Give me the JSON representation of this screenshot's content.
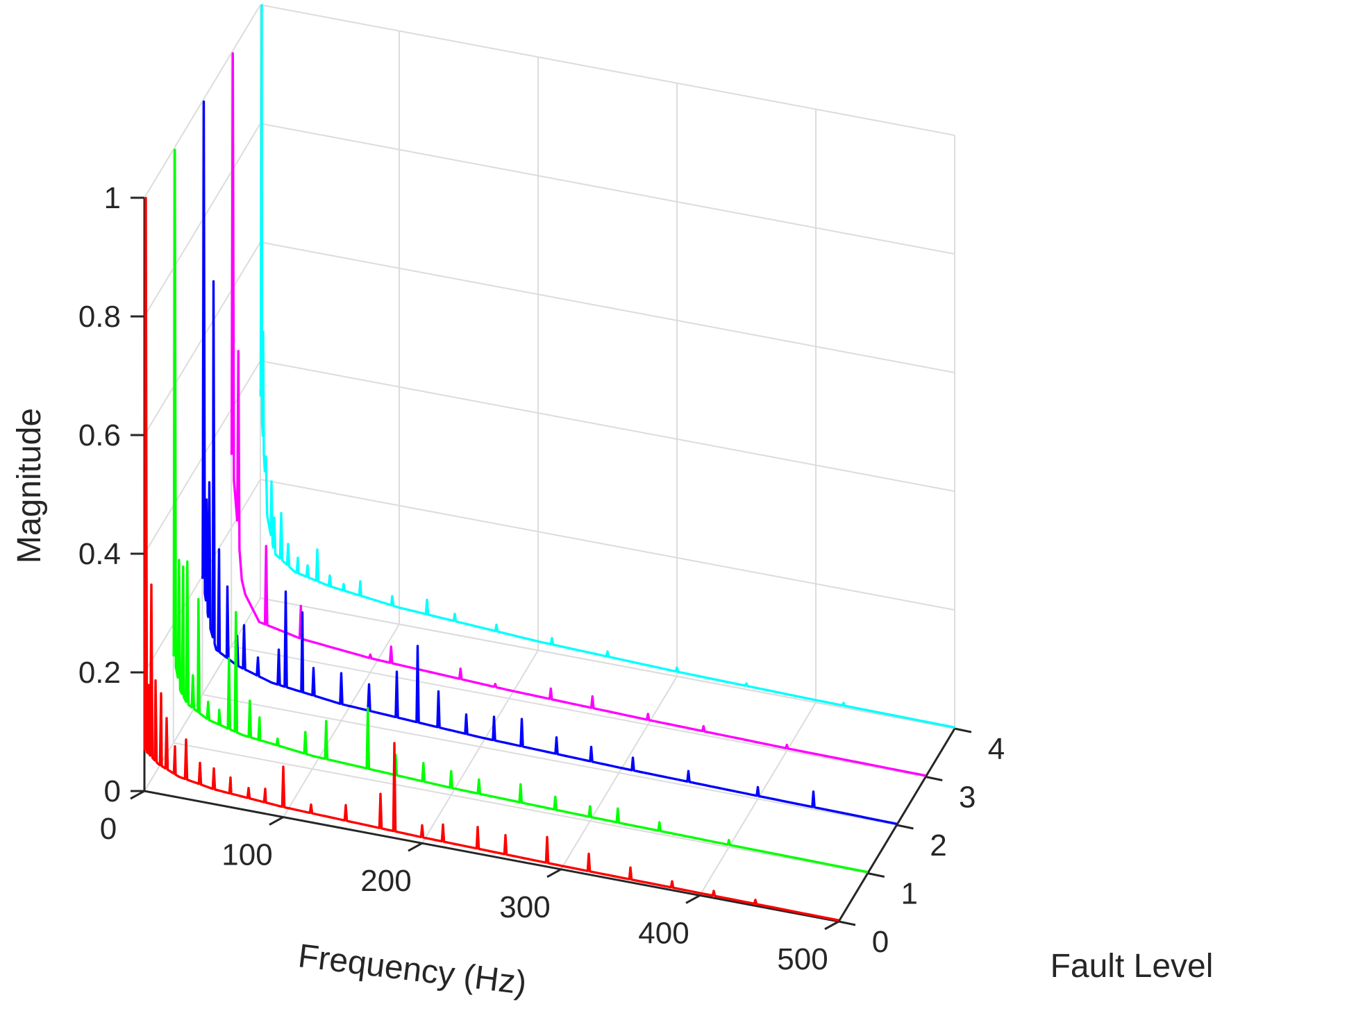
{
  "chart_data": {
    "type": "line",
    "xlabel": "Frequency (Hz)",
    "ylabel": "Fault Level",
    "zlabel": "Magnitude",
    "x_ticks": [
      0,
      100,
      200,
      300,
      400,
      500
    ],
    "y_ticks": [
      0,
      1,
      2,
      3,
      4
    ],
    "z_ticks": [
      0,
      0.2,
      0.4,
      0.6,
      0.8,
      1
    ],
    "xlim": [
      0,
      500
    ],
    "ylim": [
      0,
      4
    ],
    "zlim": [
      0,
      1
    ],
    "grid": true,
    "series": [
      {
        "fault_level": 0,
        "color": "#ff0000",
        "baseline": [
          [
            0,
            0.07
          ],
          [
            10,
            0.05
          ],
          [
            25,
            0.035
          ],
          [
            50,
            0.025
          ],
          [
            100,
            0.017
          ],
          [
            200,
            0.01
          ],
          [
            300,
            0.006
          ],
          [
            400,
            0.004
          ],
          [
            500,
            0.002
          ]
        ],
        "peaks": [
          [
            1,
            1.0
          ],
          [
            3,
            0.18
          ],
          [
            5,
            0.35
          ],
          [
            8,
            0.19
          ],
          [
            12,
            0.17
          ],
          [
            16,
            0.13
          ],
          [
            22,
            0.085
          ],
          [
            30,
            0.1
          ],
          [
            40,
            0.065
          ],
          [
            50,
            0.06
          ],
          [
            62,
            0.05
          ],
          [
            75,
            0.038
          ],
          [
            87,
            0.042
          ],
          [
            100,
            0.085
          ],
          [
            120,
            0.03
          ],
          [
            145,
            0.04
          ],
          [
            170,
            0.07
          ],
          [
            180,
            0.16
          ],
          [
            200,
            0.03
          ],
          [
            215,
            0.038
          ],
          [
            240,
            0.045
          ],
          [
            260,
            0.04
          ],
          [
            290,
            0.05
          ],
          [
            320,
            0.035
          ],
          [
            350,
            0.025
          ],
          [
            380,
            0.015
          ],
          [
            410,
            0.012
          ],
          [
            440,
            0.01
          ]
        ]
      },
      {
        "fault_level": 1,
        "color": "#00ff00",
        "baseline": [
          [
            0,
            0.15
          ],
          [
            5,
            0.09
          ],
          [
            10,
            0.07
          ],
          [
            25,
            0.05
          ],
          [
            50,
            0.035
          ],
          [
            100,
            0.022
          ],
          [
            200,
            0.012
          ],
          [
            300,
            0.007
          ],
          [
            400,
            0.004
          ],
          [
            500,
            0.002
          ]
        ],
        "peaks": [
          [
            1,
            1.0
          ],
          [
            4,
            0.31
          ],
          [
            7,
            0.3
          ],
          [
            10,
            0.31
          ],
          [
            14,
            0.12
          ],
          [
            18,
            0.25
          ],
          [
            25,
            0.08
          ],
          [
            33,
            0.07
          ],
          [
            40,
            0.16
          ],
          [
            45,
            0.24
          ],
          [
            55,
            0.095
          ],
          [
            62,
            0.07
          ],
          [
            75,
            0.04
          ],
          [
            95,
            0.06
          ],
          [
            110,
            0.085
          ],
          [
            140,
            0.12
          ],
          [
            160,
            0.05
          ],
          [
            180,
            0.045
          ],
          [
            200,
            0.04
          ],
          [
            220,
            0.035
          ],
          [
            250,
            0.04
          ],
          [
            275,
            0.03
          ],
          [
            300,
            0.025
          ],
          [
            320,
            0.03
          ],
          [
            350,
            0.02
          ],
          [
            400,
            0.012
          ]
        ]
      },
      {
        "fault_level": 2,
        "color": "#0000ff",
        "baseline": [
          [
            0,
            0.2
          ],
          [
            5,
            0.12
          ],
          [
            10,
            0.08
          ],
          [
            25,
            0.06
          ],
          [
            50,
            0.042
          ],
          [
            100,
            0.028
          ],
          [
            200,
            0.016
          ],
          [
            300,
            0.009
          ],
          [
            400,
            0.005
          ],
          [
            500,
            0.002
          ]
        ],
        "peaks": [
          [
            1,
            1.0
          ],
          [
            3,
            0.33
          ],
          [
            5,
            0.36
          ],
          [
            8,
            0.7
          ],
          [
            12,
            0.25
          ],
          [
            18,
            0.19
          ],
          [
            25,
            0.11
          ],
          [
            30,
            0.13
          ],
          [
            40,
            0.08
          ],
          [
            55,
            0.1
          ],
          [
            60,
            0.2
          ],
          [
            72,
            0.17
          ],
          [
            80,
            0.08
          ],
          [
            100,
            0.08
          ],
          [
            120,
            0.07
          ],
          [
            140,
            0.1
          ],
          [
            155,
            0.15
          ],
          [
            170,
            0.08
          ],
          [
            190,
            0.05
          ],
          [
            210,
            0.055
          ],
          [
            230,
            0.06
          ],
          [
            255,
            0.04
          ],
          [
            280,
            0.035
          ],
          [
            310,
            0.03
          ],
          [
            350,
            0.025
          ],
          [
            400,
            0.02
          ],
          [
            440,
            0.03
          ]
        ]
      },
      {
        "fault_level": 3,
        "color": "#ff00ff",
        "baseline": [
          [
            0,
            0.33
          ],
          [
            4,
            0.22
          ],
          [
            8,
            0.1
          ],
          [
            20,
            0.05
          ],
          [
            50,
            0.035
          ],
          [
            100,
            0.024
          ],
          [
            200,
            0.014
          ],
          [
            300,
            0.008
          ],
          [
            400,
            0.004
          ],
          [
            500,
            0.002
          ]
        ],
        "peaks": [
          [
            1,
            1.0
          ],
          [
            5,
            0.5
          ],
          [
            25,
            0.18
          ],
          [
            50,
            0.09
          ],
          [
            100,
            0.03
          ],
          [
            115,
            0.05
          ],
          [
            135,
            0.02
          ],
          [
            165,
            0.035
          ],
          [
            190,
            0.02
          ],
          [
            230,
            0.03
          ],
          [
            260,
            0.03
          ],
          [
            300,
            0.018
          ],
          [
            340,
            0.015
          ],
          [
            400,
            0.01
          ]
        ]
      },
      {
        "fault_level": 4,
        "color": "#00ffff",
        "baseline": [
          [
            0,
            0.35
          ],
          [
            5,
            0.14
          ],
          [
            10,
            0.08
          ],
          [
            25,
            0.055
          ],
          [
            50,
            0.042
          ],
          [
            100,
            0.028
          ],
          [
            200,
            0.015
          ],
          [
            300,
            0.008
          ],
          [
            400,
            0.004
          ],
          [
            500,
            0.002
          ]
        ],
        "peaks": [
          [
            1,
            1.0
          ],
          [
            2,
            0.45
          ],
          [
            4,
            0.24
          ],
          [
            8,
            0.2
          ],
          [
            10,
            0.14
          ],
          [
            15,
            0.15
          ],
          [
            20,
            0.1
          ],
          [
            27,
            0.08
          ],
          [
            34,
            0.07
          ],
          [
            41,
            0.1
          ],
          [
            50,
            0.06
          ],
          [
            60,
            0.05
          ],
          [
            72,
            0.06
          ],
          [
            95,
            0.045
          ],
          [
            120,
            0.05
          ],
          [
            140,
            0.035
          ],
          [
            170,
            0.03
          ],
          [
            210,
            0.025
          ],
          [
            250,
            0.02
          ],
          [
            300,
            0.015
          ],
          [
            350,
            0.01
          ],
          [
            420,
            0.008
          ]
        ]
      }
    ]
  }
}
